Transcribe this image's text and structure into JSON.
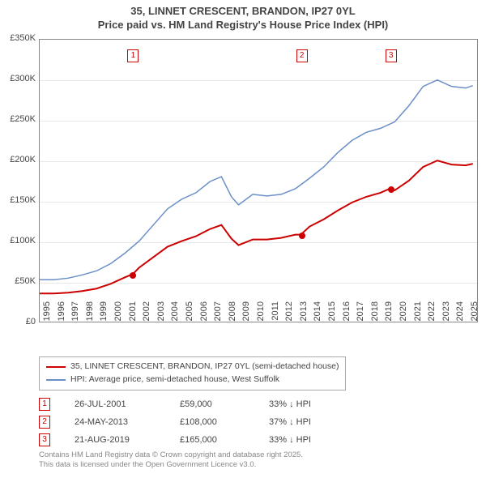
{
  "title": {
    "line1": "35, LINNET CRESCENT, BRANDON, IP27 0YL",
    "line2": "Price paid vs. HM Land Registry's House Price Index (HPI)"
  },
  "chart": {
    "type": "line",
    "background_color": "#ffffff",
    "grid_color": "#e8e8e8",
    "border_color": "#888888",
    "x_range": [
      1995,
      2025.8
    ],
    "y_range": [
      0,
      350000
    ],
    "y_ticks": [
      0,
      50000,
      100000,
      150000,
      200000,
      250000,
      300000,
      350000
    ],
    "y_tick_labels": [
      "£0",
      "£50K",
      "£100K",
      "£150K",
      "£200K",
      "£250K",
      "£300K",
      "£350K"
    ],
    "x_ticks": [
      1995,
      1996,
      1997,
      1998,
      1999,
      2000,
      2001,
      2002,
      2003,
      2004,
      2005,
      2006,
      2007,
      2008,
      2009,
      2010,
      2011,
      2012,
      2013,
      2014,
      2015,
      2016,
      2017,
      2018,
      2019,
      2020,
      2021,
      2022,
      2023,
      2024,
      2025
    ],
    "series": [
      {
        "name": "hpi",
        "label": "HPI: Average price, semi-detached house, West Suffolk",
        "color": "#6a8fc7",
        "line_width": 1.5,
        "points": [
          [
            1995,
            52000
          ],
          [
            1996,
            52000
          ],
          [
            1997,
            54000
          ],
          [
            1998,
            58000
          ],
          [
            1999,
            63000
          ],
          [
            2000,
            72000
          ],
          [
            2001,
            85000
          ],
          [
            2002,
            100000
          ],
          [
            2003,
            120000
          ],
          [
            2004,
            140000
          ],
          [
            2005,
            152000
          ],
          [
            2006,
            160000
          ],
          [
            2007,
            174000
          ],
          [
            2007.8,
            180000
          ],
          [
            2008.5,
            155000
          ],
          [
            2009,
            145000
          ],
          [
            2010,
            158000
          ],
          [
            2011,
            156000
          ],
          [
            2012,
            158000
          ],
          [
            2013,
            165000
          ],
          [
            2014,
            178000
          ],
          [
            2015,
            192000
          ],
          [
            2016,
            210000
          ],
          [
            2017,
            225000
          ],
          [
            2018,
            235000
          ],
          [
            2019,
            240000
          ],
          [
            2020,
            248000
          ],
          [
            2021,
            268000
          ],
          [
            2022,
            292000
          ],
          [
            2023,
            300000
          ],
          [
            2024,
            292000
          ],
          [
            2025,
            290000
          ],
          [
            2025.5,
            293000
          ]
        ]
      },
      {
        "name": "price_paid",
        "label": "35, LINNET CRESCENT, BRANDON, IP27 0YL (semi-detached house)",
        "color": "#cc0000",
        "line_width": 2,
        "points": [
          [
            1995,
            35000
          ],
          [
            1996,
            35000
          ],
          [
            1997,
            36000
          ],
          [
            1998,
            38000
          ],
          [
            1999,
            41000
          ],
          [
            2000,
            47000
          ],
          [
            2001,
            55000
          ],
          [
            2001.56,
            59000
          ],
          [
            2002,
            67000
          ],
          [
            2003,
            80000
          ],
          [
            2004,
            93000
          ],
          [
            2005,
            100000
          ],
          [
            2006,
            106000
          ],
          [
            2007,
            115000
          ],
          [
            2007.8,
            120000
          ],
          [
            2008.5,
            103000
          ],
          [
            2009,
            95000
          ],
          [
            2010,
            102000
          ],
          [
            2011,
            102000
          ],
          [
            2012,
            104000
          ],
          [
            2013,
            108000
          ],
          [
            2013.39,
            108000
          ],
          [
            2014,
            118000
          ],
          [
            2015,
            127000
          ],
          [
            2016,
            138000
          ],
          [
            2017,
            148000
          ],
          [
            2018,
            155000
          ],
          [
            2019,
            160000
          ],
          [
            2019.64,
            165000
          ],
          [
            2020,
            163000
          ],
          [
            2021,
            175000
          ],
          [
            2022,
            192000
          ],
          [
            2023,
            200000
          ],
          [
            2024,
            195000
          ],
          [
            2025,
            194000
          ],
          [
            2025.5,
            196000
          ]
        ]
      }
    ],
    "markers": [
      {
        "num": "1",
        "x": 2001.56,
        "y": 59000
      },
      {
        "num": "2",
        "x": 2013.39,
        "y": 108000
      },
      {
        "num": "3",
        "x": 2019.64,
        "y": 165000
      }
    ]
  },
  "sales": [
    {
      "num": "1",
      "date": "26-JUL-2001",
      "price": "£59,000",
      "diff": "33% ↓ HPI"
    },
    {
      "num": "2",
      "date": "24-MAY-2013",
      "price": "£108,000",
      "diff": "37% ↓ HPI"
    },
    {
      "num": "3",
      "date": "21-AUG-2019",
      "price": "£165,000",
      "diff": "33% ↓ HPI"
    }
  ],
  "footnote": {
    "line1": "Contains HM Land Registry data © Crown copyright and database right 2025.",
    "line2": "This data is licensed under the Open Government Licence v3.0."
  }
}
